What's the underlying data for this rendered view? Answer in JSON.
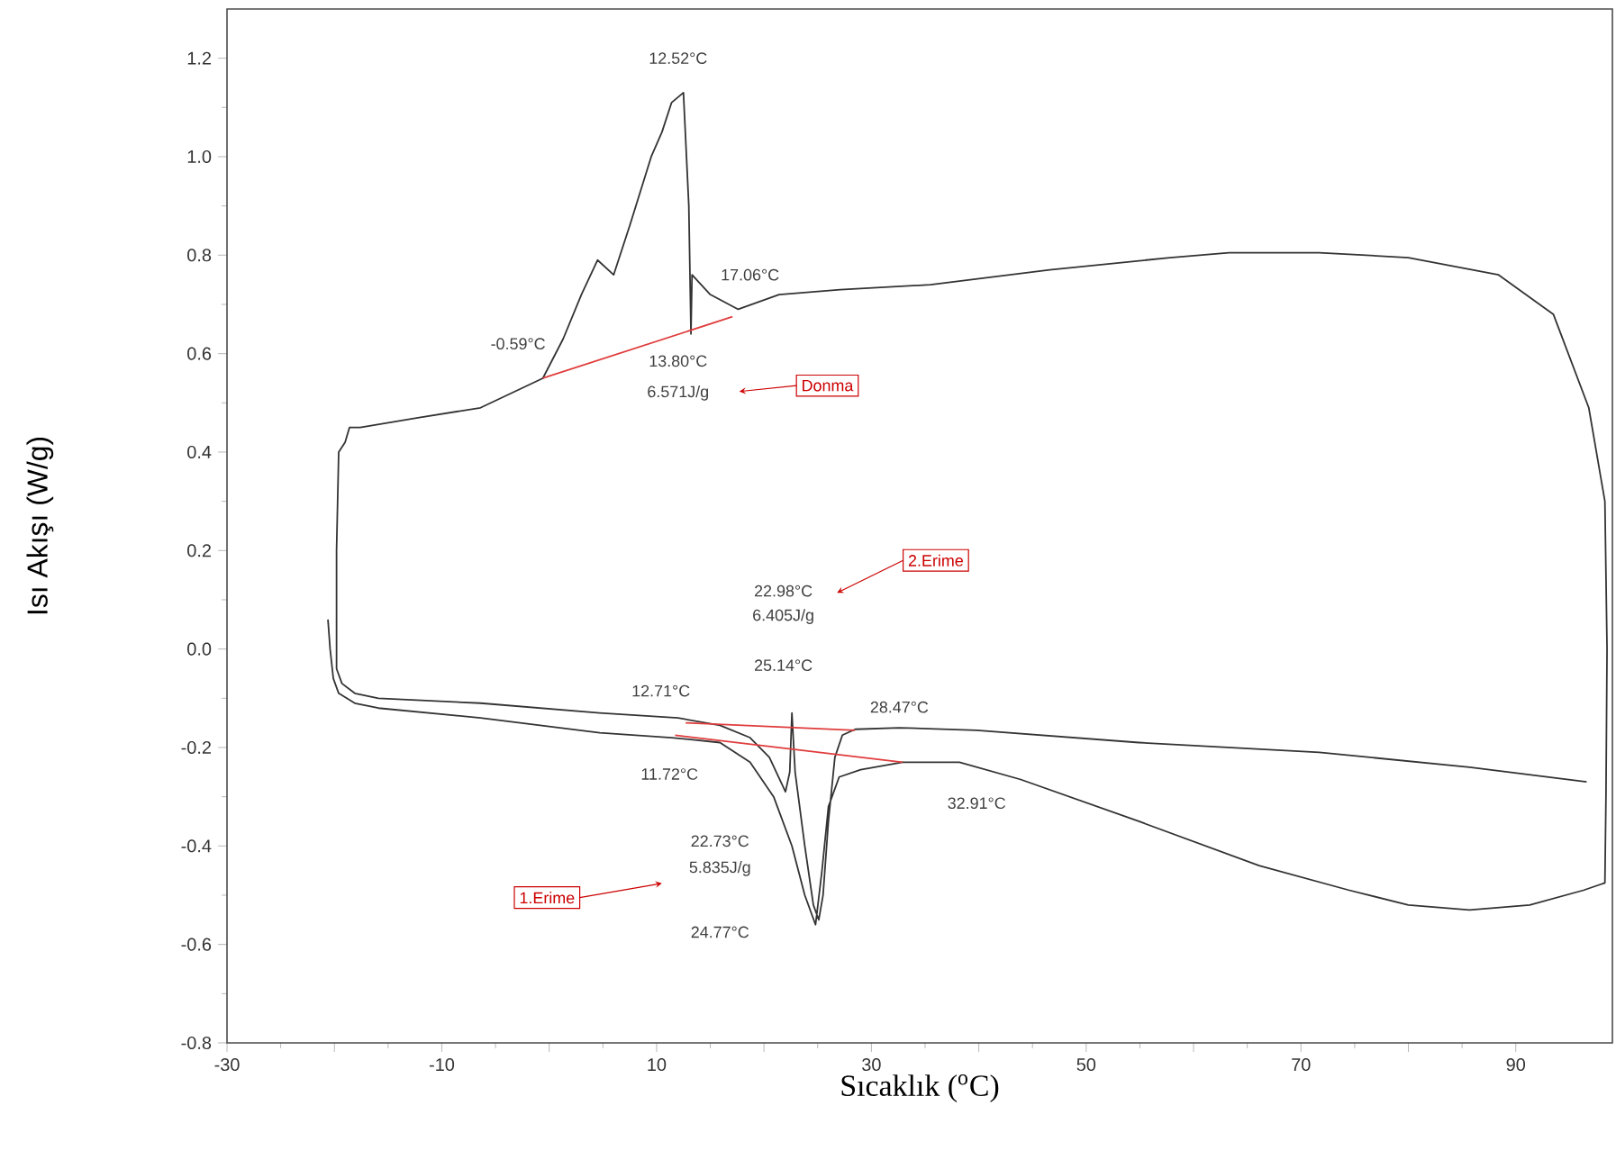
{
  "chart_data": {
    "type": "line",
    "xlabel": "Sıcaklık ($^{o}$C)",
    "ylabel": "Isı Akışı (W/g)",
    "xlim": [
      -30,
      99
    ],
    "ylim": [
      -0.8,
      1.3
    ],
    "xticks": [
      -30,
      {
        "value": -20,
        "label": null
      },
      -10,
      {
        "value": 0,
        "label": null
      },
      10,
      {
        "value": 20,
        "label": null
      },
      30,
      {
        "value": 40,
        "label": null
      },
      50,
      {
        "value": 60,
        "label": null
      },
      70,
      {
        "value": 80,
        "label": null
      },
      90
    ],
    "yticks": [
      -0.8,
      -0.6,
      -0.4,
      -0.2,
      {
        "value": 0,
        "label": "0.0"
      },
      0.2,
      0.4,
      0.6,
      0.8,
      {
        "value": 1,
        "label": "1.0"
      },
      1.2
    ],
    "series": [
      {
        "color": "#333333",
        "x": [
          -20.6,
          -20.4,
          -20.1,
          -19.6,
          -18.1,
          -15.9,
          -6.4,
          4.7,
          11.4,
          15.9,
          18.7,
          20.9,
          22.6,
          23.8,
          24.8,
          25.4,
          26.0,
          27.0,
          29.0,
          32.9,
          38.2,
          43.9,
          54.9,
          66.1,
          74.5,
          80.0,
          85.7,
          91.3,
          96.3,
          98.3,
          98.4,
          98.5,
          98.3,
          96.8,
          93.5,
          88.4,
          80.0,
          71.7,
          63.3,
          57.8,
          46.6,
          35.5,
          27.1,
          21.4,
          17.6,
          15.0,
          13.3,
          13.2,
          13.0,
          12.5,
          11.4,
          10.5,
          9.5,
          7.5,
          6.0,
          4.5,
          3.0,
          1.3,
          -0.59,
          -6.4,
          -12.1,
          -17.6,
          -18.6,
          -19.0,
          -19.6,
          -19.8,
          -19.8,
          -19.3,
          -18.1,
          -15.9,
          -6.4,
          4.7,
          12.0,
          15.9,
          18.7,
          20.5,
          22.0,
          22.4,
          22.6,
          22.9,
          23.8,
          24.6,
          25.1,
          25.5,
          26.0,
          26.6,
          27.3,
          28.5,
          32.6,
          39.8,
          54.9,
          71.7,
          85.7,
          96.6
        ],
        "values": [
          0.06,
          0.0,
          -0.06,
          -0.09,
          -0.11,
          -0.12,
          -0.14,
          -0.17,
          -0.18,
          -0.19,
          -0.23,
          -0.3,
          -0.4,
          -0.5,
          -0.56,
          -0.45,
          -0.32,
          -0.26,
          -0.245,
          -0.23,
          -0.23,
          -0.265,
          -0.35,
          -0.44,
          -0.49,
          -0.52,
          -0.53,
          -0.52,
          -0.49,
          -0.475,
          -0.3,
          0.0,
          0.3,
          0.49,
          0.68,
          0.76,
          0.795,
          0.805,
          0.805,
          0.795,
          0.77,
          0.74,
          0.73,
          0.72,
          0.69,
          0.72,
          0.76,
          0.64,
          0.9,
          1.13,
          1.11,
          1.05,
          1.0,
          0.86,
          0.76,
          0.79,
          0.72,
          0.63,
          0.55,
          0.49,
          0.47,
          0.45,
          0.45,
          0.42,
          0.4,
          0.2,
          -0.04,
          -0.07,
          -0.09,
          -0.1,
          -0.11,
          -0.13,
          -0.14,
          -0.155,
          -0.18,
          -0.22,
          -0.29,
          -0.25,
          -0.13,
          -0.25,
          -0.4,
          -0.52,
          -0.55,
          -0.5,
          -0.35,
          -0.22,
          -0.175,
          -0.163,
          -0.16,
          -0.165,
          -0.19,
          -0.21,
          -0.24,
          -0.27
        ]
      },
      {
        "color": "#e03c3c",
        "x": [
          -0.59,
          17.06
        ],
        "values": [
          0.55,
          0.675
        ]
      },
      {
        "color": "#e03c3c",
        "x": [
          12.71,
          28.47
        ],
        "values": [
          -0.15,
          -0.165
        ]
      },
      {
        "color": "#e03c3c",
        "x": [
          11.72,
          32.91
        ],
        "values": [
          -0.175,
          -0.23
        ]
      }
    ],
    "annotations": [
      "12.52°C",
      "17.06°C",
      "-0.59°C",
      "13.80°C",
      "6.571J/g",
      "Donma",
      "2.Erime",
      "22.98°C",
      "6.405J/g",
      "25.14°C",
      "28.47°C",
      "12.71°C",
      "11.72°C",
      "32.91°C",
      "1.Erime",
      "22.73°C",
      "5.835J/g",
      "24.77°C"
    ]
  }
}
